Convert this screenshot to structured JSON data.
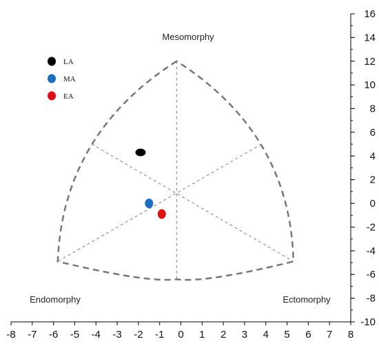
{
  "chart_data": {
    "type": "scatter",
    "title": "",
    "xlabel": "",
    "ylabel": "",
    "xlim": [
      -8,
      8
    ],
    "ylim": [
      -10,
      16
    ],
    "x_ticks": [
      -8,
      -7,
      -6,
      -5,
      -4,
      -3,
      -2,
      -1,
      0,
      1,
      2,
      3,
      4,
      5,
      6,
      7,
      8
    ],
    "y_ticks": [
      -10,
      -8,
      -6,
      -4,
      -2,
      0,
      2,
      4,
      6,
      8,
      10,
      12,
      14,
      16
    ],
    "y_axis_side": "right",
    "grid": false,
    "legend_position": "top-left",
    "corner_labels": {
      "top": "Mesomorphy",
      "bottom_left": "Endomorphy",
      "bottom_right": "Ectomorphy"
    },
    "somatochart_vertices": {
      "top": [
        -0.2,
        12
      ],
      "left": [
        -5.8,
        -4.9
      ],
      "right": [
        5.3,
        -4.9
      ],
      "bottom": [
        -0.2,
        -6.4
      ],
      "upper_left": [
        -4.2,
        5
      ],
      "upper_right": [
        3.8,
        5
      ],
      "center": [
        -0.2,
        0.6
      ]
    },
    "series": [
      {
        "name": "LA",
        "color": "#000000",
        "x": [
          -1.9
        ],
        "y": [
          4.3
        ]
      },
      {
        "name": "MA",
        "color": "#1a6fc0",
        "x": [
          -1.5
        ],
        "y": [
          0.0
        ]
      },
      {
        "name": "EA",
        "color": "#e01010",
        "x": [
          -0.9
        ],
        "y": [
          -0.9
        ]
      }
    ]
  }
}
